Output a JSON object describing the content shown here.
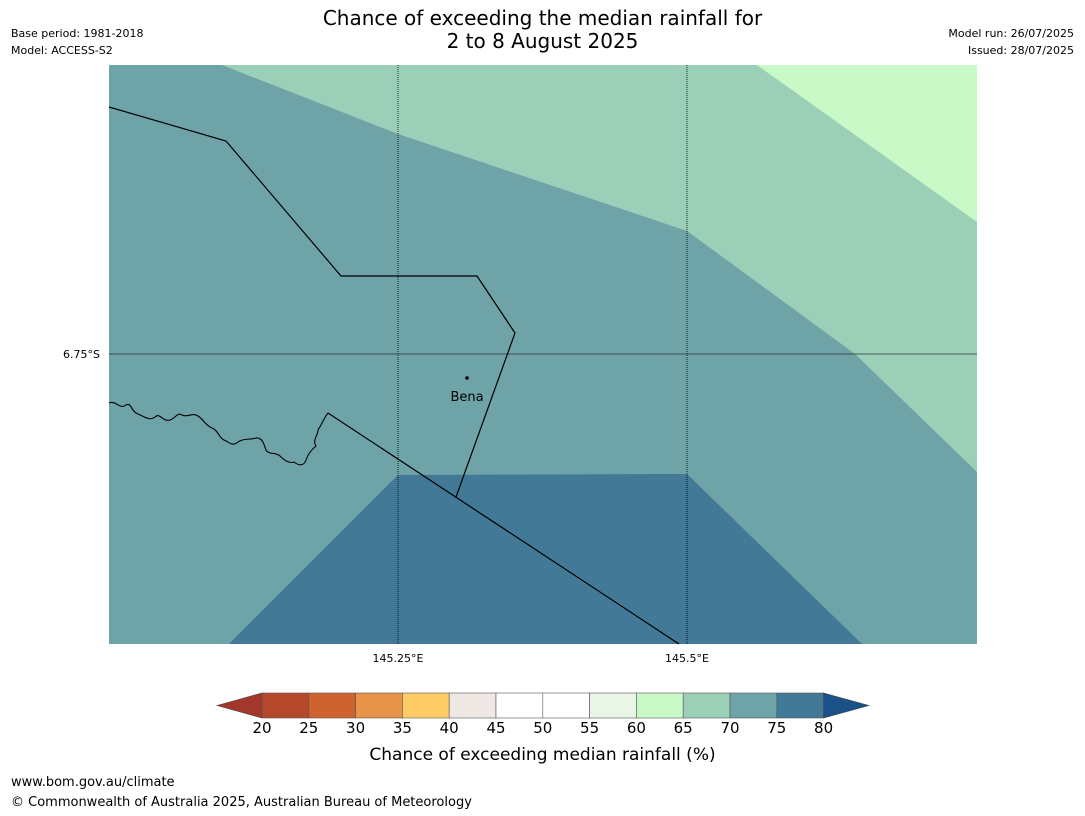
{
  "title": {
    "line1": "Chance of exceeding the median rainfall for",
    "line2": "2 to 8 August 2025"
  },
  "meta_left": {
    "base_period": "Base period: 1981-2018",
    "model": "Model: ACCESS-S2"
  },
  "meta_right": {
    "model_run": "Model run: 26/07/2025",
    "issued": "Issued: 28/07/2025"
  },
  "map": {
    "lat_label": "6.75°S",
    "lon_labels": [
      "145.25°E",
      "145.5°E"
    ],
    "town": {
      "name": "Bena"
    },
    "zones_percent_band": [
      "70-75",
      "75-80",
      "65-70",
      "60-65"
    ]
  },
  "colorbar": {
    "ticks": [
      "20",
      "25",
      "30",
      "35",
      "40",
      "45",
      "50",
      "55",
      "60",
      "65",
      "70",
      "75",
      "80"
    ],
    "colors": [
      "#a3382a",
      "#b5482a",
      "#cf632f",
      "#e5944a",
      "#fecb66",
      "#ede8e4",
      "#ffffff",
      "#ffffff",
      "#e8f5e7",
      "#c8f9c7",
      "#9ccfb7",
      "#6ea3a7",
      "#417997",
      "#1a5188"
    ],
    "label": "Chance of exceeding median rainfall (%)"
  },
  "footer": {
    "url": "www.bom.gov.au/climate",
    "copyright": "© Commonwealth of Australia 2025, Australian Bureau of Meteorology"
  }
}
